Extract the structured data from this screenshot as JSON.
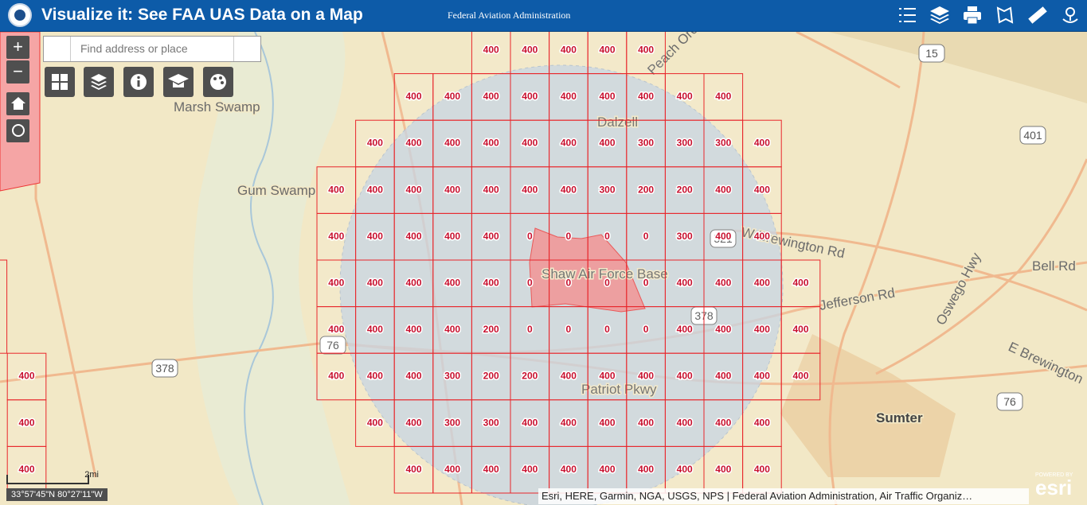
{
  "header": {
    "title": "Visualize it: See FAA UAS Data on a Map",
    "agency": "Federal Aviation Administration"
  },
  "search": {
    "placeholder": "Find address or place"
  },
  "zoom": {
    "in": "+",
    "out": "−"
  },
  "map_labels": [
    "Marsh Swamp",
    "Gum Swamp",
    "Dalzell",
    "Sumter",
    "Bell Rd",
    "W Brewington Rd",
    "E Brewington",
    "Oswego Hwy",
    "Peach Orchard Rd",
    "Patriot Pkwy",
    "Shaw Air Force Base",
    "Jefferson Rd"
  ],
  "road_shields": [
    "15",
    "401",
    "378",
    "76",
    "521",
    "378",
    "76"
  ],
  "grid": {
    "rows": [
      [
        400,
        400,
        400,
        400,
        400
      ],
      [
        400,
        400,
        400,
        400,
        400,
        400,
        400,
        400,
        400
      ],
      [
        400,
        400,
        400,
        400,
        400,
        400,
        400,
        300,
        300,
        300,
        400
      ],
      [
        400,
        400,
        400,
        400,
        400,
        400,
        400,
        300,
        200,
        200,
        400,
        400
      ],
      [
        400,
        400,
        400,
        400,
        400,
        0,
        0,
        0,
        0,
        300,
        400,
        400
      ],
      [
        400,
        400,
        400,
        400,
        400,
        0,
        0,
        0,
        0,
        400,
        400,
        400,
        400
      ],
      [
        400,
        400,
        400,
        400,
        200,
        0,
        0,
        0,
        0,
        400,
        400,
        400,
        400
      ],
      [
        400,
        400,
        400,
        300,
        200,
        200,
        400,
        400,
        400,
        400,
        400,
        400,
        400
      ],
      [
        400,
        400,
        300,
        300,
        400,
        400,
        400,
        400,
        400,
        400,
        400
      ],
      [
        400,
        400,
        400,
        400,
        400,
        400,
        400,
        400,
        400,
        400
      ]
    ],
    "left_column": [
      400,
      400,
      400
    ]
  },
  "scale_label": "2mi",
  "coordinates": "33°57'45\"N 80°27'11\"W",
  "attribution": "Esri, HERE, Garmin, NGA, USGS, NPS | Federal Aviation Administration, Air Traffic Organiz…",
  "esri": {
    "powered": "POWERED BY",
    "logo": "esri"
  }
}
